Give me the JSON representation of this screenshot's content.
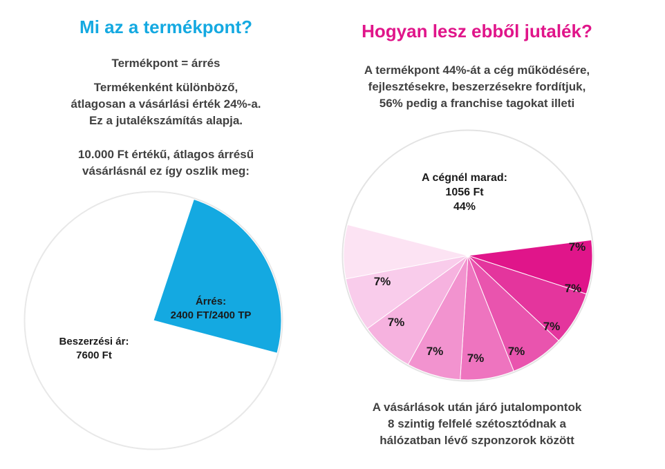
{
  "colors": {
    "cyan": "#14a9e1",
    "magenta": "#e0158a",
    "text_gray": "#404040",
    "pie_stroke": "#e3e3e3"
  },
  "left": {
    "title": "Mi az a termékpont?",
    "line1": "Termékpont = árrés",
    "para1": [
      "Termékenként különböző,",
      "átlagosan a vásárlási érték 24%-a.",
      "Ez a jutalékszámítás alapja."
    ],
    "para2": [
      "10.000 Ft értékű, átlagos árrésű",
      "vásárlásnál ez így oszlik meg:"
    ]
  },
  "right": {
    "title": "Hogyan lesz ebből jutalék?",
    "para1": [
      "A termékpont 44%-át a cég működésére,",
      "fejlesztésekre, beszerzésekre fordítjuk,",
      "56% pedig a franchise tagokat illeti"
    ],
    "footer": [
      "A vásárlások után járó jutalompontok",
      "8 szintig felfelé szétosztódnak a",
      "hálózatban lévő szponzorok között"
    ]
  },
  "chart_data": [
    {
      "type": "pie",
      "total": 10000,
      "slices": [
        {
          "label": [
            "Árrés:",
            "2400 FT/2400 TP"
          ],
          "value": 2400,
          "color": "#14a9e1"
        },
        {
          "label": [
            "Beszerzési ár:",
            "7600 Ft"
          ],
          "value": 7600,
          "color": "#ffffff"
        }
      ]
    },
    {
      "type": "pie",
      "slices": [
        {
          "label": [
            "A cégnél marad:",
            "1056 Ft",
            "44%"
          ],
          "value": 44,
          "color": "#ffffff"
        },
        {
          "label": [
            "7%"
          ],
          "value": 7,
          "color": "#e0158a"
        },
        {
          "label": [
            "7%"
          ],
          "value": 7,
          "color": "#e4359d"
        },
        {
          "label": [
            "7%"
          ],
          "value": 7,
          "color": "#e954ae"
        },
        {
          "label": [
            "7%"
          ],
          "value": 7,
          "color": "#ee74bf"
        },
        {
          "label": [
            "7%"
          ],
          "value": 7,
          "color": "#f293cf"
        },
        {
          "label": [
            "7%"
          ],
          "value": 7,
          "color": "#f6b2df"
        },
        {
          "label": [
            "7%"
          ],
          "value": 7,
          "color": "#f9cceb"
        },
        {
          "label": [
            "7%"
          ],
          "value": 7,
          "color": "#fce3f3"
        }
      ]
    }
  ]
}
